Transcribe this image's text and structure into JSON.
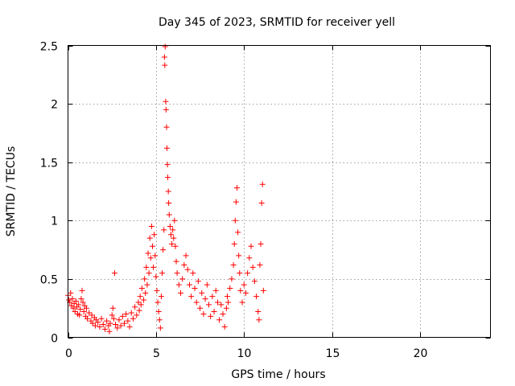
{
  "chart_data": {
    "type": "scatter",
    "title": "Day 345 of 2023, SRMTID for receiver yell",
    "xlabel": "GPS time / hours",
    "ylabel": "SRMTID / TECUs",
    "xlim": [
      0,
      24
    ],
    "ylim": [
      0,
      2.5
    ],
    "xticks": [
      0,
      5,
      10,
      15,
      20
    ],
    "xtick_labels": [
      "0",
      "5",
      "10",
      "15",
      "20"
    ],
    "yticks": [
      0,
      0.5,
      1,
      1.5,
      2,
      2.5
    ],
    "ytick_labels": [
      "0",
      "0.5",
      "1",
      "1.5",
      "2",
      "2.5"
    ],
    "grid": true,
    "marker": "+",
    "color": "#ff0000",
    "series": [
      {
        "name": "SRMTID",
        "points": [
          [
            0.0,
            0.36
          ],
          [
            0.05,
            0.32
          ],
          [
            0.1,
            0.3
          ],
          [
            0.15,
            0.38
          ],
          [
            0.2,
            0.27
          ],
          [
            0.25,
            0.33
          ],
          [
            0.3,
            0.25
          ],
          [
            0.35,
            0.29
          ],
          [
            0.4,
            0.22
          ],
          [
            0.45,
            0.31
          ],
          [
            0.5,
            0.26
          ],
          [
            0.55,
            0.2
          ],
          [
            0.6,
            0.28
          ],
          [
            0.65,
            0.19
          ],
          [
            0.7,
            0.24
          ],
          [
            0.75,
            0.33
          ],
          [
            0.8,
            0.4
          ],
          [
            0.85,
            0.3
          ],
          [
            0.9,
            0.22
          ],
          [
            0.95,
            0.27
          ],
          [
            1.0,
            0.18
          ],
          [
            1.05,
            0.25
          ],
          [
            1.1,
            0.16
          ],
          [
            1.2,
            0.21
          ],
          [
            1.3,
            0.14
          ],
          [
            1.35,
            0.19
          ],
          [
            1.4,
            0.12
          ],
          [
            1.5,
            0.17
          ],
          [
            1.55,
            0.1
          ],
          [
            1.6,
            0.15
          ],
          [
            1.7,
            0.13
          ],
          [
            1.8,
            0.09
          ],
          [
            1.9,
            0.16
          ],
          [
            2.0,
            0.11
          ],
          [
            2.1,
            0.07
          ],
          [
            2.2,
            0.14
          ],
          [
            2.3,
            0.1
          ],
          [
            2.35,
            0.05
          ],
          [
            2.4,
            0.12
          ],
          [
            2.5,
            0.19
          ],
          [
            2.55,
            0.25
          ],
          [
            2.6,
            0.16
          ],
          [
            2.65,
            0.55
          ],
          [
            2.7,
            0.11
          ],
          [
            2.8,
            0.08
          ],
          [
            2.9,
            0.15
          ],
          [
            3.0,
            0.1
          ],
          [
            3.1,
            0.18
          ],
          [
            3.2,
            0.12
          ],
          [
            3.3,
            0.2
          ],
          [
            3.4,
            0.14
          ],
          [
            3.5,
            0.09
          ],
          [
            3.6,
            0.21
          ],
          [
            3.7,
            0.16
          ],
          [
            3.8,
            0.26
          ],
          [
            3.9,
            0.19
          ],
          [
            4.0,
            0.3
          ],
          [
            4.05,
            0.23
          ],
          [
            4.1,
            0.35
          ],
          [
            4.15,
            0.28
          ],
          [
            4.2,
            0.42
          ],
          [
            4.3,
            0.32
          ],
          [
            4.35,
            0.5
          ],
          [
            4.4,
            0.38
          ],
          [
            4.45,
            0.6
          ],
          [
            4.5,
            0.45
          ],
          [
            4.55,
            0.72
          ],
          [
            4.6,
            0.55
          ],
          [
            4.65,
            0.85
          ],
          [
            4.7,
            0.68
          ],
          [
            4.75,
            0.95
          ],
          [
            4.8,
            0.78
          ],
          [
            4.85,
            0.6
          ],
          [
            4.9,
            0.88
          ],
          [
            4.95,
            0.7
          ],
          [
            5.0,
            0.52
          ],
          [
            5.05,
            0.4
          ],
          [
            5.1,
            0.3
          ],
          [
            5.15,
            0.22
          ],
          [
            5.2,
            0.15
          ],
          [
            5.25,
            0.08
          ],
          [
            5.3,
            0.35
          ],
          [
            5.35,
            0.55
          ],
          [
            5.4,
            0.75
          ],
          [
            5.45,
            0.92
          ],
          [
            5.48,
            2.4
          ],
          [
            5.5,
            2.33
          ],
          [
            5.52,
            2.49
          ],
          [
            5.55,
            2.02
          ],
          [
            5.57,
            1.95
          ],
          [
            5.6,
            1.8
          ],
          [
            5.62,
            1.62
          ],
          [
            5.65,
            1.48
          ],
          [
            5.67,
            1.37
          ],
          [
            5.7,
            1.25
          ],
          [
            5.72,
            1.15
          ],
          [
            5.75,
            1.05
          ],
          [
            5.8,
            0.95
          ],
          [
            5.85,
            0.88
          ],
          [
            5.9,
            0.8
          ],
          [
            5.95,
            0.92
          ],
          [
            6.0,
            0.85
          ],
          [
            6.05,
            1.0
          ],
          [
            6.1,
            0.78
          ],
          [
            6.15,
            0.65
          ],
          [
            6.2,
            0.55
          ],
          [
            6.3,
            0.45
          ],
          [
            6.4,
            0.38
          ],
          [
            6.5,
            0.5
          ],
          [
            6.6,
            0.62
          ],
          [
            6.7,
            0.7
          ],
          [
            6.8,
            0.58
          ],
          [
            6.9,
            0.45
          ],
          [
            7.0,
            0.35
          ],
          [
            7.1,
            0.55
          ],
          [
            7.2,
            0.42
          ],
          [
            7.3,
            0.3
          ],
          [
            7.4,
            0.48
          ],
          [
            7.5,
            0.25
          ],
          [
            7.6,
            0.38
          ],
          [
            7.7,
            0.2
          ],
          [
            7.8,
            0.33
          ],
          [
            7.9,
            0.45
          ],
          [
            8.0,
            0.28
          ],
          [
            8.1,
            0.18
          ],
          [
            8.2,
            0.35
          ],
          [
            8.3,
            0.22
          ],
          [
            8.4,
            0.4
          ],
          [
            8.5,
            0.3
          ],
          [
            8.6,
            0.15
          ],
          [
            8.7,
            0.28
          ],
          [
            8.8,
            0.2
          ],
          [
            8.9,
            0.09
          ],
          [
            9.0,
            0.25
          ],
          [
            9.05,
            0.35
          ],
          [
            9.1,
            0.3
          ],
          [
            9.2,
            0.42
          ],
          [
            9.3,
            0.5
          ],
          [
            9.4,
            0.62
          ],
          [
            9.45,
            0.8
          ],
          [
            9.5,
            1.0
          ],
          [
            9.55,
            1.16
          ],
          [
            9.6,
            1.28
          ],
          [
            9.65,
            0.9
          ],
          [
            9.7,
            0.7
          ],
          [
            9.75,
            0.55
          ],
          [
            9.8,
            0.4
          ],
          [
            9.9,
            0.3
          ],
          [
            10.0,
            0.45
          ],
          [
            10.1,
            0.38
          ],
          [
            10.2,
            0.55
          ],
          [
            10.3,
            0.68
          ],
          [
            10.4,
            0.78
          ],
          [
            10.5,
            0.6
          ],
          [
            10.6,
            0.48
          ],
          [
            10.7,
            0.35
          ],
          [
            10.8,
            0.22
          ],
          [
            10.85,
            0.15
          ],
          [
            10.9,
            0.62
          ],
          [
            10.95,
            0.8
          ],
          [
            11.0,
            1.15
          ],
          [
            11.05,
            1.31
          ],
          [
            11.1,
            0.4
          ]
        ]
      }
    ]
  }
}
